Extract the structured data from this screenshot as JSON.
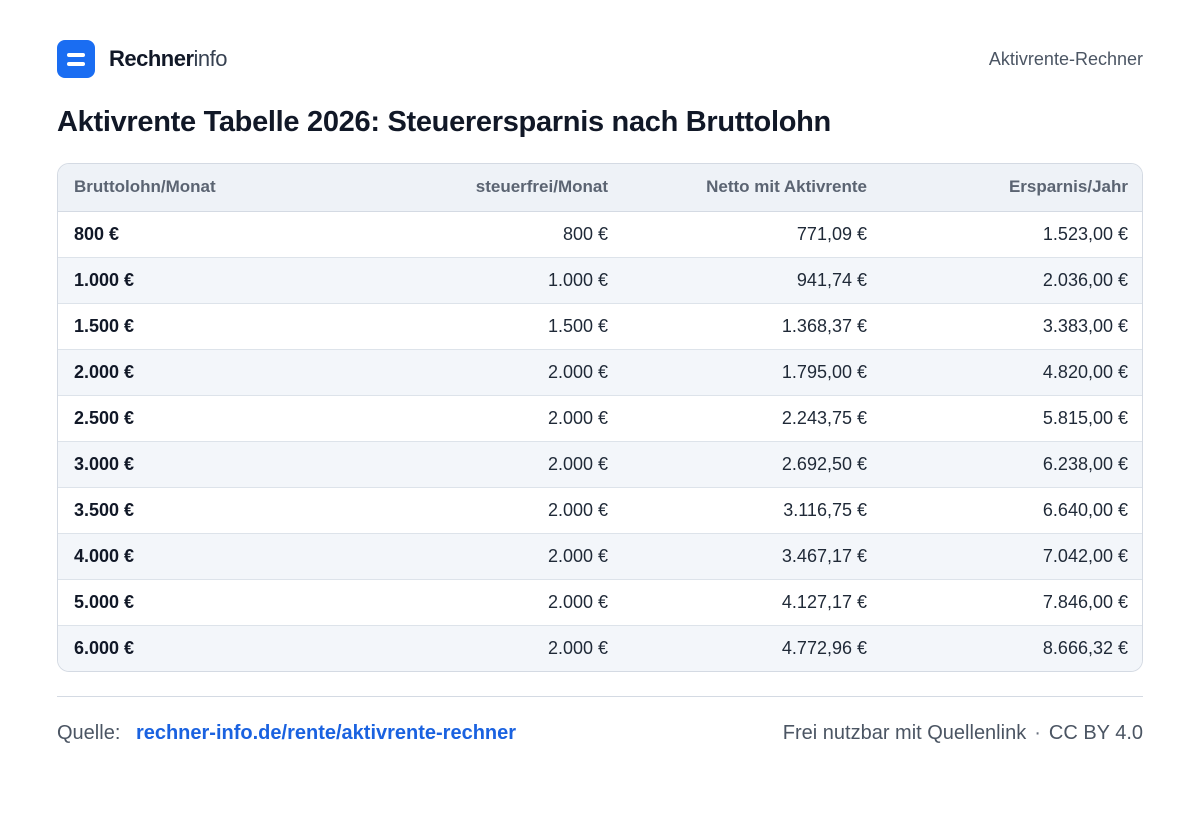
{
  "header": {
    "brand_bold": "Rechner",
    "brand_light": "info",
    "right_text": "Aktivrente-Rechner"
  },
  "title": "Aktivrente Tabelle 2026: Steuerersparnis nach Bruttolohn",
  "table": {
    "columns": [
      "Bruttolohn/Monat",
      "steuerfrei/Monat",
      "Netto mit Aktivrente",
      "Ersparnis/Jahr"
    ],
    "rows": [
      [
        "800 €",
        "800 €",
        "771,09 €",
        "1.523,00 €"
      ],
      [
        "1.000 €",
        "1.000 €",
        "941,74 €",
        "2.036,00 €"
      ],
      [
        "1.500 €",
        "1.500 €",
        "1.368,37 €",
        "3.383,00 €"
      ],
      [
        "2.000 €",
        "2.000 €",
        "1.795,00 €",
        "4.820,00 €"
      ],
      [
        "2.500 €",
        "2.000 €",
        "2.243,75 €",
        "5.815,00 €"
      ],
      [
        "3.000 €",
        "2.000 €",
        "2.692,50 €",
        "6.238,00 €"
      ],
      [
        "3.500 €",
        "2.000 €",
        "3.116,75 €",
        "6.640,00 €"
      ],
      [
        "4.000 €",
        "2.000 €",
        "3.467,17 €",
        "7.042,00 €"
      ],
      [
        "5.000 €",
        "2.000 €",
        "4.127,17 €",
        "7.846,00 €"
      ],
      [
        "6.000 €",
        "2.000 €",
        "4.772,96 €",
        "8.666,32 €"
      ]
    ]
  },
  "footer": {
    "source_label": "Quelle:",
    "source_link": "rechner-info.de/rente/aktivrente-rechner",
    "license_text": "Frei nutzbar mit Quellenlink",
    "separator": "·",
    "license": "CC BY 4.0"
  },
  "colors": {
    "accent": "#1a6df2",
    "link": "#1a62e0",
    "header_bg": "#eef2f7",
    "stripe_bg": "#f3f6fa"
  },
  "icons": {
    "logo": "menu-lines-icon"
  }
}
